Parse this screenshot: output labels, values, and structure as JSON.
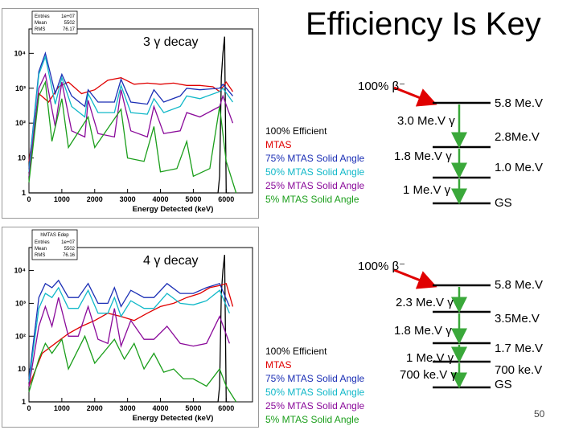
{
  "slide": {
    "title": "Efficiency Is Key",
    "page_number": "50"
  },
  "panels": [
    {
      "label": "3 γ decay",
      "stats": {
        "title": "",
        "rows": [
          [
            "Entries",
            "1e+07"
          ],
          [
            "Mean",
            "5502"
          ],
          [
            "RMS",
            "76.17"
          ]
        ]
      },
      "legend": [
        "100% Efficient",
        "MTAS",
        "75% MTAS Solid Angle",
        "50% MTAS Solid Angle",
        "25% MTAS Solid Angle",
        "5% MTAS Solid Angle"
      ],
      "beta": "100% β⁻",
      "levels": [
        "5.8 Me.V",
        "2.8Me.V",
        "1.0 Me.V",
        "GS"
      ],
      "gammas": [
        "3.0 Me.V γ",
        "1.8 Me.V γ",
        "1 Me.V γ"
      ]
    },
    {
      "label": "4 γ decay",
      "stats": {
        "title": "hMTAS Edep",
        "rows": [
          [
            "Entries",
            "1e+07"
          ],
          [
            "Mean",
            "5502"
          ],
          [
            "RMS",
            "76.16"
          ]
        ]
      },
      "legend": [
        "100% Efficient",
        "MTAS",
        "75% MTAS Solid Angle",
        "50% MTAS Solid Angle",
        "25% MTAS Solid Angle",
        "5% MTAS Solid Angle"
      ],
      "beta": "100% β⁻",
      "levels": [
        "5.8 Me.V",
        "3.5Me.V",
        "1.7 Me.V",
        "700 ke.V",
        "GS"
      ],
      "gammas": [
        "2.3 Me.V γ",
        "1.8 Me.V γ",
        "1 Me.V γ",
        "700 ke.V γ"
      ]
    }
  ],
  "chart_data": [
    {
      "type": "line",
      "xlabel": "Energy Detected (keV)",
      "ylabel": "",
      "log_y": true,
      "xlim": [
        0,
        6800
      ],
      "ylim": [
        1,
        50000
      ],
      "x_ticks": [
        0,
        1000,
        2000,
        3000,
        4000,
        5000,
        6000
      ],
      "y_ticks": [
        1,
        10,
        100,
        1000,
        10000
      ],
      "y_tick_labels": [
        "1",
        "10",
        "10²",
        "10³",
        "10⁴"
      ],
      "grid": false,
      "series": [
        {
          "color": "#000000",
          "x": [
            0,
            5700,
            5750,
            5800,
            5850,
            5900,
            5950,
            6000,
            6100
          ],
          "y": [
            1,
            1,
            1,
            3,
            2000,
            10000,
            30000,
            1,
            1
          ]
        },
        {
          "color": "#e00000",
          "x": [
            0,
            300,
            600,
            900,
            1200,
            1600,
            2000,
            2400,
            2800,
            3200,
            3600,
            4000,
            4400,
            4800,
            5200,
            5600,
            5800,
            6000,
            6200
          ],
          "y": [
            8,
            700,
            400,
            1100,
            1500,
            700,
            900,
            1700,
            2000,
            1300,
            1400,
            1300,
            1400,
            1200,
            1200,
            1100,
            800,
            1500,
            800
          ]
        },
        {
          "color": "#1b2fb5",
          "x": [
            0,
            300,
            500,
            800,
            1000,
            1300,
            1700,
            1800,
            2100,
            2600,
            2800,
            3100,
            3600,
            3800,
            4100,
            4600,
            4800,
            5200,
            5800,
            5900,
            6200
          ],
          "y": [
            5,
            3000,
            10000,
            700,
            2500,
            600,
            300,
            900,
            400,
            400,
            1800,
            400,
            350,
            900,
            400,
            600,
            1000,
            900,
            1000,
            1300,
            600
          ]
        },
        {
          "color": "#10b8c8",
          "x": [
            0,
            300,
            500,
            800,
            1000,
            1300,
            1700,
            1800,
            2100,
            2600,
            2800,
            3100,
            3600,
            3800,
            4100,
            4600,
            4800,
            5200,
            5800,
            5900,
            6200
          ],
          "y": [
            4,
            2500,
            8000,
            350,
            2000,
            300,
            150,
            700,
            200,
            200,
            1200,
            200,
            180,
            500,
            200,
            300,
            600,
            500,
            800,
            1000,
            400
          ]
        },
        {
          "color": "#8a0a9a",
          "x": [
            0,
            300,
            500,
            800,
            1000,
            1300,
            1700,
            1800,
            2100,
            2600,
            2800,
            3100,
            3600,
            3800,
            4100,
            4600,
            4800,
            5200,
            5800,
            5900,
            6200
          ],
          "y": [
            3,
            1000,
            2500,
            80,
            1500,
            60,
            40,
            450,
            50,
            40,
            900,
            60,
            40,
            300,
            50,
            60,
            200,
            150,
            300,
            600,
            100
          ]
        },
        {
          "color": "#1a9e1a",
          "x": [
            0,
            300,
            500,
            700,
            1000,
            1200,
            1800,
            2000,
            2800,
            3000,
            3500,
            3800,
            4000,
            4500,
            4800,
            5000,
            5500,
            5800,
            6000,
            6300
          ],
          "y": [
            2,
            600,
            1500,
            30,
            500,
            20,
            150,
            20,
            250,
            10,
            8,
            80,
            4,
            5,
            30,
            3,
            5,
            300,
            8,
            1
          ]
        }
      ]
    },
    {
      "type": "line",
      "xlabel": "Energy Detected (keV)",
      "ylabel": "",
      "log_y": true,
      "xlim": [
        0,
        6800
      ],
      "ylim": [
        1,
        50000
      ],
      "x_ticks": [
        0,
        1000,
        2000,
        3000,
        4000,
        5000,
        6000
      ],
      "y_ticks": [
        1,
        10,
        100,
        1000,
        10000
      ],
      "y_tick_labels": [
        "1",
        "10",
        "10²",
        "10³",
        "10⁴"
      ],
      "grid": false,
      "series": [
        {
          "color": "#000000",
          "x": [
            0,
            5700,
            5750,
            5800,
            5850,
            5900,
            5950,
            6000,
            6100
          ],
          "y": [
            1,
            1,
            1,
            3,
            2000,
            10000,
            30000,
            1,
            1
          ]
        },
        {
          "color": "#e00000",
          "x": [
            0,
            400,
            800,
            1200,
            1600,
            2000,
            2400,
            2800,
            3200,
            3600,
            4000,
            4400,
            4800,
            5200,
            5500,
            5800,
            6000,
            6200
          ],
          "y": [
            3,
            30,
            60,
            120,
            200,
            300,
            500,
            400,
            300,
            500,
            800,
            1000,
            1500,
            2000,
            3000,
            3500,
            4000,
            800
          ]
        },
        {
          "color": "#1b2fb5",
          "x": [
            0,
            300,
            500,
            700,
            900,
            1200,
            1500,
            1800,
            2100,
            2400,
            2600,
            2800,
            3100,
            3500,
            3800,
            4200,
            4600,
            5000,
            5400,
            5800,
            6100
          ],
          "y": [
            5,
            1500,
            4000,
            3000,
            5000,
            1500,
            1500,
            4000,
            1000,
            1000,
            3000,
            800,
            2500,
            1500,
            1500,
            4000,
            2000,
            2000,
            3000,
            4000,
            800
          ]
        },
        {
          "color": "#10b8c8",
          "x": [
            0,
            300,
            500,
            700,
            900,
            1200,
            1500,
            1800,
            2100,
            2400,
            2600,
            2800,
            3100,
            3500,
            3800,
            4200,
            4600,
            5000,
            5400,
            5800,
            6100
          ],
          "y": [
            4,
            700,
            2000,
            1500,
            3000,
            700,
            700,
            2500,
            500,
            500,
            1500,
            400,
            1200,
            700,
            700,
            2000,
            1000,
            900,
            1200,
            2500,
            500
          ]
        },
        {
          "color": "#8a0a9a",
          "x": [
            0,
            300,
            500,
            700,
            900,
            1200,
            1500,
            1800,
            2100,
            2400,
            2600,
            2800,
            3100,
            3500,
            3800,
            4200,
            4600,
            5000,
            5400,
            5800,
            6100
          ],
          "y": [
            3,
            200,
            800,
            200,
            1500,
            100,
            100,
            800,
            80,
            60,
            700,
            50,
            300,
            80,
            80,
            200,
            60,
            50,
            60,
            400,
            60
          ]
        },
        {
          "color": "#1a9e1a",
          "x": [
            0,
            300,
            500,
            700,
            1000,
            1200,
            1700,
            2000,
            2600,
            2900,
            3200,
            3500,
            3800,
            4100,
            4400,
            4700,
            5000,
            5400,
            5800,
            6000,
            6300
          ],
          "y": [
            2,
            20,
            60,
            30,
            80,
            10,
            100,
            15,
            80,
            20,
            60,
            10,
            30,
            8,
            10,
            5,
            5,
            3,
            10,
            3,
            1
          ]
        }
      ]
    }
  ]
}
